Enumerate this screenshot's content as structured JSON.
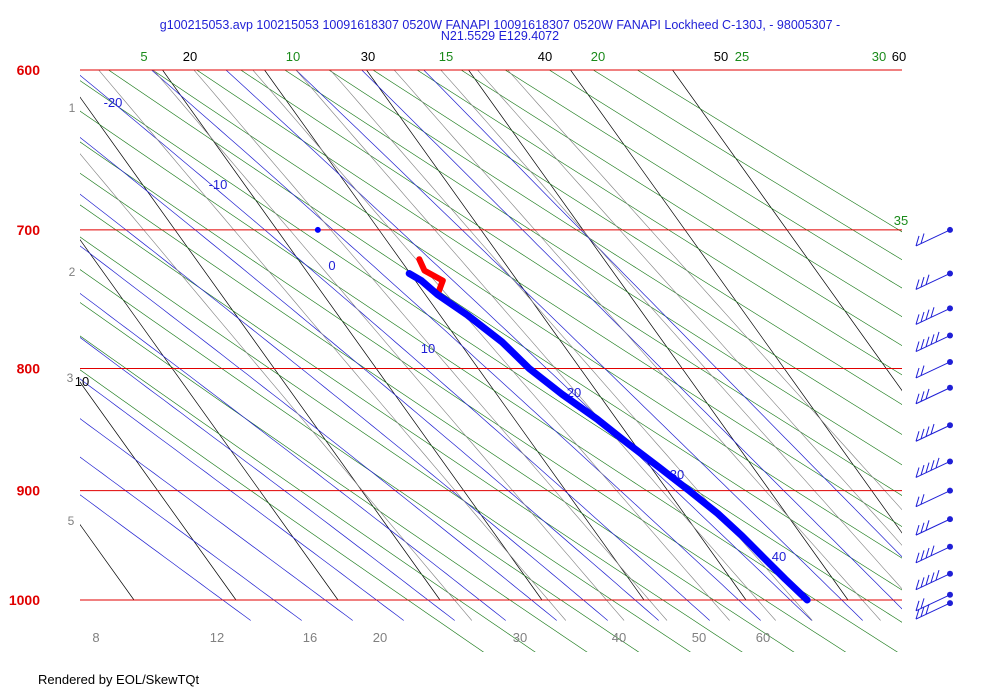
{
  "chart_data": {
    "type": "skew-t",
    "title_line1": "g100215053.avp 100215053 10091618307 0520W FANAPI 10091618307 0520W FANAPI Lockheed C-130J, - 98005307 -",
    "title_line2": "N21.5529 E129.4072",
    "pressure_levels": [
      "600",
      "700",
      "800",
      "900",
      "1000"
    ],
    "height_ticks": [
      "1",
      "2",
      "3",
      "5"
    ],
    "isotherm_labels": [
      "20",
      "30",
      "40",
      "50",
      "60",
      "10"
    ],
    "dry_adiabat_labels": [
      "5",
      "10",
      "15",
      "20",
      "25",
      "30",
      "35"
    ],
    "moist_adiabat_labels": [
      "-20",
      "-10",
      "0",
      "10",
      "20",
      "30",
      "40"
    ],
    "mixing_ratio_labels": [
      "8",
      "12",
      "16",
      "20",
      "30",
      "40",
      "50",
      "60"
    ],
    "temperature_profile": [
      {
        "p": 1000,
        "t": 26.0
      },
      {
        "p": 980,
        "t": 25.3
      },
      {
        "p": 960,
        "t": 24.7
      },
      {
        "p": 940,
        "t": 24.1
      },
      {
        "p": 920,
        "t": 23.3
      },
      {
        "p": 900,
        "t": 22.1
      },
      {
        "p": 880,
        "t": 20.8
      },
      {
        "p": 860,
        "t": 19.4
      },
      {
        "p": 840,
        "t": 18.1
      },
      {
        "p": 820,
        "t": 16.4
      },
      {
        "p": 800,
        "t": 15.0
      },
      {
        "p": 780,
        "t": 14.2
      },
      {
        "p": 760,
        "t": 12.7
      },
      {
        "p": 745,
        "t": 11.2
      },
      {
        "p": 735,
        "t": 12.7
      },
      {
        "p": 728,
        "t": 11.6
      },
      {
        "p": 720,
        "t": 11.9
      }
    ],
    "dewpoint_profile": [
      {
        "p": 1000,
        "t": 26.0
      },
      {
        "p": 980,
        "t": 25.3
      },
      {
        "p": 960,
        "t": 24.7
      },
      {
        "p": 940,
        "t": 24.1
      },
      {
        "p": 920,
        "t": 23.3
      },
      {
        "p": 900,
        "t": 22.1
      },
      {
        "p": 880,
        "t": 20.8
      },
      {
        "p": 860,
        "t": 19.4
      },
      {
        "p": 840,
        "t": 18.1
      },
      {
        "p": 820,
        "t": 16.4
      },
      {
        "p": 800,
        "t": 15.0
      },
      {
        "p": 780,
        "t": 14.2
      },
      {
        "p": 760,
        "t": 12.7
      },
      {
        "p": 745,
        "t": 11.2
      },
      {
        "p": 735,
        "t": 10.6
      },
      {
        "p": 730,
        "t": 9.9
      }
    ],
    "isolated_point": {
      "p": 700,
      "t": 4.0
    },
    "wind_barbs_pressures": [
      700,
      730,
      755,
      775,
      795,
      815,
      845,
      875,
      900,
      925,
      950,
      975,
      995,
      1003
    ],
    "colors": {
      "isobar": "#e00000",
      "isotherm": "#000000",
      "dry_adiabat": "#1a7a1a",
      "moist_adiabat": "#2020d0",
      "mixing_ratio": "#808080",
      "temperature": "#ff0000",
      "dewpoint": "#0000ff",
      "wind": "#1f1fd6"
    }
  },
  "footer": "Rendered by EOL/SkewTQt"
}
